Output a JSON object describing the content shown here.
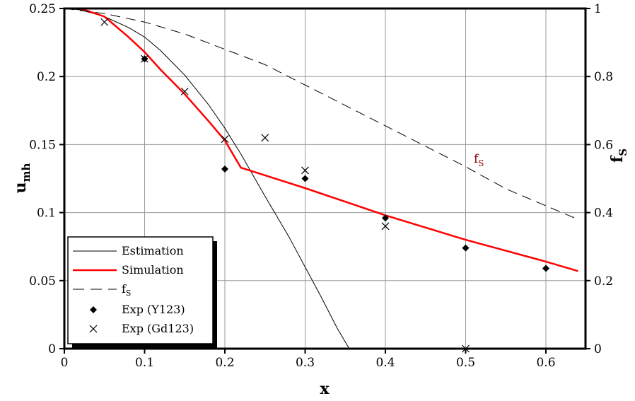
{
  "chart_data": {
    "type": "line",
    "title": "",
    "xlabel": "x",
    "ylabel_left": "u",
    "ylabel_left_sub": "mh",
    "ylabel_right": "f",
    "ylabel_right_sub": "S",
    "xlim": [
      0,
      0.65
    ],
    "ylim_left": [
      0,
      0.25
    ],
    "ylim_right": [
      0,
      1
    ],
    "grid": true,
    "legend_position": "bottom-left",
    "x_ticks": [
      {
        "v": 0,
        "label": "0"
      },
      {
        "v": 0.1,
        "label": "0.1"
      },
      {
        "v": 0.2,
        "label": "0.2"
      },
      {
        "v": 0.3,
        "label": "0.3"
      },
      {
        "v": 0.4,
        "label": "0.4"
      },
      {
        "v": 0.5,
        "label": "0.5"
      },
      {
        "v": 0.6,
        "label": "0.6"
      }
    ],
    "y_left_ticks": [
      {
        "v": 0,
        "label": "0"
      },
      {
        "v": 0.05,
        "label": "0.05"
      },
      {
        "v": 0.1,
        "label": "0.1"
      },
      {
        "v": 0.15,
        "label": "0.15"
      },
      {
        "v": 0.2,
        "label": "0.2"
      },
      {
        "v": 0.25,
        "label": "0.25"
      }
    ],
    "y_right_ticks": [
      {
        "v": 0,
        "label": "0"
      },
      {
        "v": 0.2,
        "label": "0.2"
      },
      {
        "v": 0.4,
        "label": "0.4"
      },
      {
        "v": 0.6,
        "label": "0.6"
      },
      {
        "v": 0.8,
        "label": "0.8"
      },
      {
        "v": 1,
        "label": "1"
      }
    ],
    "series": [
      {
        "name": "Estimation",
        "kind": "line",
        "axis": "left",
        "color": "#000000",
        "width": 1,
        "dash": "",
        "x": [
          0,
          0.02,
          0.05,
          0.08,
          0.1,
          0.12,
          0.15,
          0.18,
          0.2,
          0.22,
          0.25,
          0.28,
          0.3,
          0.32,
          0.34,
          0.355
        ],
        "y": [
          0.25,
          0.249,
          0.244,
          0.236,
          0.229,
          0.219,
          0.201,
          0.179,
          0.162,
          0.143,
          0.112,
          0.082,
          0.06,
          0.038,
          0.015,
          0
        ]
      },
      {
        "name": "Simulation",
        "kind": "line",
        "axis": "left",
        "color": "#ff0000",
        "width": 2.5,
        "dash": "",
        "x": [
          0,
          0.02,
          0.05,
          0.08,
          0.1,
          0.12,
          0.15,
          0.18,
          0.2,
          0.22,
          0.3,
          0.4,
          0.5,
          0.6,
          0.64
        ],
        "y": [
          0.25,
          0.25,
          0.244,
          0.229,
          0.218,
          0.205,
          0.187,
          0.167,
          0.153,
          0.133,
          0.118,
          0.098,
          0.08,
          0.064,
          0.057
        ]
      },
      {
        "name": "f",
        "name_sub": "S",
        "kind": "line",
        "axis": "right",
        "color": "#000000",
        "width": 1,
        "dash": "14,8",
        "x": [
          0,
          0.05,
          0.1,
          0.15,
          0.2,
          0.25,
          0.3,
          0.35,
          0.4,
          0.45,
          0.5,
          0.55,
          0.6,
          0.64
        ],
        "y": [
          1.0,
          0.985,
          0.96,
          0.925,
          0.88,
          0.835,
          0.775,
          0.715,
          0.655,
          0.595,
          0.535,
          0.47,
          0.42,
          0.38
        ]
      },
      {
        "name": "Exp (Y123)",
        "kind": "scatter",
        "marker": "diamond",
        "axis": "left",
        "color": "#000000",
        "x": [
          0.1,
          0.2,
          0.3,
          0.4,
          0.5,
          0.6
        ],
        "y": [
          0.213,
          0.132,
          0.125,
          0.096,
          0.074,
          0.059
        ]
      },
      {
        "name": "Exp (Gd123)",
        "kind": "scatter",
        "marker": "cross",
        "axis": "left",
        "color": "#000000",
        "x": [
          0.05,
          0.1,
          0.15,
          0.2,
          0.25,
          0.3,
          0.4,
          0.5
        ],
        "y": [
          0.24,
          0.213,
          0.189,
          0.154,
          0.155,
          0.131,
          0.09,
          0
        ]
      }
    ],
    "annotations": [
      {
        "text": "f",
        "sub": "S",
        "x": 0.515,
        "y_left": 0.137
      }
    ]
  }
}
